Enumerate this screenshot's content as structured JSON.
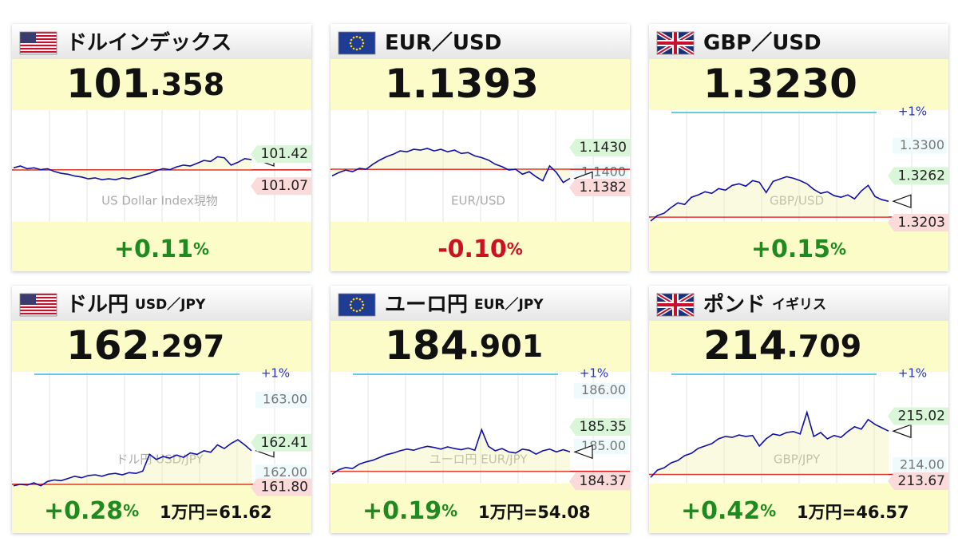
{
  "panels": [
    {
      "flag": "us",
      "title": "ドルインデックス",
      "price_int": "101",
      "price_dec": ".358",
      "change": "+0.11",
      "change_unit": "%",
      "change_color": "#1f8a1f",
      "watermark": "US Dollar Index現物",
      "ylim": [
        100.68,
        101.9
      ],
      "base": 101.247,
      "high_label": 101.42,
      "low_label": 101.07,
      "values": [
        101.27,
        101.29,
        101.26,
        101.27,
        101.25,
        101.26,
        101.23,
        101.21,
        101.2,
        101.18,
        101.17,
        101.15,
        101.16,
        101.14,
        101.15,
        101.14,
        101.16,
        101.15,
        101.17,
        101.19,
        101.21,
        101.24,
        101.26,
        101.25,
        101.28,
        101.3,
        101.29,
        101.32,
        101.35,
        101.34,
        101.39,
        101.38,
        101.3,
        101.33,
        101.37,
        101.36
      ]
    },
    {
      "flag": "eu",
      "title": "EUR／USD",
      "price_int": "1.1393",
      "change": "-0.10",
      "change_unit": "%",
      "change_color": "#cc1122",
      "watermark": "EUR/USD",
      "ylim": [
        1.13407,
        1.14751
      ],
      "base": 1.1404,
      "high_label": {
        "value": 1.143,
        "label": "1.1430"
      },
      "low_label": 1.1382,
      "axis_labels": [
        {
          "value": 1.14,
          "label": "1.1400"
        }
      ],
      "values": [
        1.1396,
        1.14,
        1.1403,
        1.1401,
        1.1405,
        1.1404,
        1.141,
        1.1415,
        1.1419,
        1.1422,
        1.1426,
        1.1425,
        1.1428,
        1.1427,
        1.1429,
        1.1426,
        1.1428,
        1.1425,
        1.1427,
        1.1423,
        1.1424,
        1.142,
        1.1418,
        1.1415,
        1.141,
        1.1407,
        1.1403,
        1.1404,
        1.1398,
        1.1401,
        1.1395,
        1.139,
        1.1408,
        1.14,
        1.1388,
        1.1393
      ]
    },
    {
      "flag": "gb",
      "title": "GBP／USD",
      "price_int": "1.3230",
      "change": "+0.15",
      "change_unit": "%",
      "change_color": "#1f8a1f",
      "watermark": "GBP/USD",
      "ref_label": "+1%",
      "ylim": [
        1.3204,
        1.3345
      ],
      "base": 1.321,
      "high_label": 1.3262,
      "low_label": 1.3203,
      "axis_labels": [
        {
          "value": 1.33,
          "label": "1.3300"
        }
      ],
      "values": [
        1.3205,
        1.3212,
        1.3215,
        1.3222,
        1.3228,
        1.3226,
        1.3235,
        1.3238,
        1.3242,
        1.324,
        1.3246,
        1.3244,
        1.325,
        1.3252,
        1.3249,
        1.3256,
        1.3254,
        1.3241,
        1.3255,
        1.3258,
        1.3261,
        1.3259,
        1.3256,
        1.3252,
        1.3245,
        1.324,
        1.3242,
        1.3237,
        1.3235,
        1.3238,
        1.3233,
        1.3243,
        1.325,
        1.3236,
        1.3232,
        1.323
      ]
    },
    {
      "flag": "us",
      "title": "ドル円",
      "pair": "USD／JPY",
      "price_int": "162",
      "price_dec": ".297",
      "change": "+0.28",
      "change_unit": "%",
      "change_color": "#1f8a1f",
      "yen": "1万円=61.62",
      "watermark": "ドル円 USD/JPY",
      "ref_label": "+1%",
      "ylim": [
        161.85,
        163.38
      ],
      "base": 161.84,
      "high_label": 162.41,
      "low_label": {
        "value": 161.8,
        "label": "161.80"
      },
      "axis_labels": [
        {
          "value": 163,
          "label": "163.00"
        },
        {
          "value": 162,
          "label": "162.00"
        }
      ],
      "values": [
        161.82,
        161.84,
        161.83,
        161.86,
        161.82,
        161.88,
        161.9,
        161.89,
        161.92,
        161.95,
        161.93,
        161.96,
        161.97,
        161.95,
        161.98,
        161.99,
        161.97,
        162,
        161.99,
        162.02,
        162.25,
        162.18,
        162.22,
        162.2,
        162.24,
        162.21,
        162.27,
        162.25,
        162.3,
        162.28,
        162.38,
        162.33,
        162.4,
        162.45,
        162.38,
        162.3
      ]
    },
    {
      "flag": "eu",
      "title": "ユーロ円",
      "pair": "EUR／JPY",
      "price_int": "184",
      "price_dec": ".901",
      "change": "+0.19",
      "change_unit": "%",
      "change_color": "#1f8a1f",
      "yen": "1万円=54.08",
      "watermark": "ユーロ円 EUR/JPY",
      "ref_label": "+1%",
      "ylim": [
        184.33,
        186.34
      ],
      "base": 184.55,
      "high_label": 185.35,
      "low_label": 184.37,
      "axis_labels": [
        {
          "value": 186,
          "label": "186.00"
        },
        {
          "value": 185,
          "label": "185.00"
        }
      ],
      "values": [
        184.5,
        184.58,
        184.62,
        184.6,
        184.68,
        184.72,
        184.75,
        184.8,
        184.85,
        184.88,
        184.92,
        184.95,
        184.93,
        184.97,
        185,
        184.98,
        184.95,
        184.99,
        184.96,
        184.94,
        184.97,
        184.93,
        185.3,
        185,
        184.92,
        184.96,
        184.9,
        184.88,
        184.95,
        184.93,
        184.86,
        184.92,
        184.95,
        184.9,
        184.94,
        184.9
      ]
    },
    {
      "flag": "gb",
      "title": "ポンド",
      "pair": "イギリス",
      "price_int": "214",
      "price_dec": ".709",
      "change": "+0.42",
      "change_unit": "%",
      "change_color": "#1f8a1f",
      "yen": "1万円=46.57",
      "watermark": "GBP/JPY",
      "ref_label": "+1%",
      "ylim": [
        213.62,
        215.94
      ],
      "base": 213.81,
      "high_label": 215.02,
      "low_label": 213.67,
      "axis_labels": [
        {
          "value": 214,
          "label": "214.00"
        }
      ],
      "values": [
        213.75,
        213.9,
        213.95,
        214.05,
        214.1,
        214.2,
        214.25,
        214.35,
        214.4,
        214.45,
        214.55,
        214.6,
        214.58,
        214.63,
        214.6,
        214.62,
        214.4,
        214.55,
        214.65,
        214.62,
        214.68,
        214.7,
        214.65,
        215.1,
        214.6,
        214.68,
        214.55,
        214.62,
        214.58,
        214.7,
        214.8,
        214.75,
        214.95,
        214.85,
        214.78,
        214.71
      ]
    }
  ]
}
